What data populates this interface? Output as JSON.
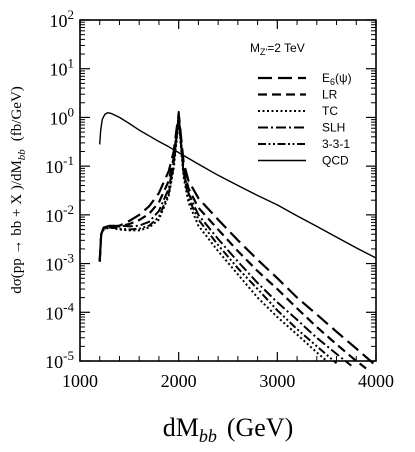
{
  "chart_data": {
    "type": "line",
    "xlabel": "dM",
    "xlabel_sub": "bb",
    "xlabel_unit": "(GeV)",
    "ylabel_parts": {
      "prefix": "dσ(pp → bb + X  )/dM",
      "sub": "bb",
      "unit": "(fb/GeV)"
    },
    "xlim": [
      1000,
      4000
    ],
    "ylim": [
      1e-05,
      100
    ],
    "yscale": "log",
    "grid": false,
    "legend_position": "top-right",
    "legend_title": "M",
    "legend_title_sub": "Z'",
    "legend_title_rest": "=2 TeV",
    "x_ticks": [
      {
        "value": 1000,
        "label": "1000"
      },
      {
        "value": 2000,
        "label": "2000"
      },
      {
        "value": 3000,
        "label": "3000"
      },
      {
        "value": 4000,
        "label": "4000"
      }
    ],
    "y_ticks": [
      {
        "value": 100,
        "base": "10",
        "exp": "2"
      },
      {
        "value": 10,
        "base": "10",
        "exp": "1"
      },
      {
        "value": 1,
        "base": "10",
        "exp": "0"
      },
      {
        "value": 0.1,
        "base": "10",
        "exp": "-1"
      },
      {
        "value": 0.01,
        "base": "10",
        "exp": "-2"
      },
      {
        "value": 0.001,
        "base": "10",
        "exp": "-3"
      },
      {
        "value": 0.0001,
        "base": "10",
        "exp": "-4"
      },
      {
        "value": 1e-05,
        "base": "10",
        "exp": "-5"
      }
    ],
    "series": [
      {
        "name": "E6(ψ)",
        "label_main": "E",
        "label_sub": "6",
        "label_rest": "(ψ)",
        "dash": "14,6",
        "width": 2.2,
        "points": [
          [
            1200,
            0.0011
          ],
          [
            1215,
            0.004
          ],
          [
            1240,
            0.0055
          ],
          [
            1300,
            0.0058
          ],
          [
            1400,
            0.006
          ],
          [
            1500,
            0.0075
          ],
          [
            1600,
            0.01
          ],
          [
            1700,
            0.015
          ],
          [
            1800,
            0.028
          ],
          [
            1900,
            0.08
          ],
          [
            1950,
            0.2
          ],
          [
            1980,
            0.6
          ],
          [
            2000,
            1.2
          ],
          [
            2020,
            0.5
          ],
          [
            2050,
            0.12
          ],
          [
            2100,
            0.05
          ],
          [
            2200,
            0.022
          ],
          [
            2400,
            0.008
          ],
          [
            2600,
            0.003
          ],
          [
            2800,
            0.0012
          ],
          [
            3000,
            0.0005
          ],
          [
            3200,
            0.0002
          ],
          [
            3400,
            9e-05
          ],
          [
            3600,
            4e-05
          ],
          [
            3800,
            1.8e-05
          ],
          [
            4000,
            8e-06
          ]
        ]
      },
      {
        "name": "LR",
        "label_main": "LR",
        "label_sub": "",
        "label_rest": "",
        "dash": "9,5",
        "width": 2.2,
        "points": [
          [
            1200,
            0.0011
          ],
          [
            1215,
            0.004
          ],
          [
            1240,
            0.0055
          ],
          [
            1300,
            0.0058
          ],
          [
            1400,
            0.0058
          ],
          [
            1500,
            0.0065
          ],
          [
            1600,
            0.0078
          ],
          [
            1700,
            0.0105
          ],
          [
            1800,
            0.018
          ],
          [
            1900,
            0.05
          ],
          [
            1950,
            0.15
          ],
          [
            1980,
            0.5
          ],
          [
            2000,
            1.0
          ],
          [
            2020,
            0.35
          ],
          [
            2050,
            0.09
          ],
          [
            2100,
            0.035
          ],
          [
            2200,
            0.014
          ],
          [
            2400,
            0.005
          ],
          [
            2600,
            0.0018
          ],
          [
            2800,
            0.0007
          ],
          [
            3000,
            0.0003
          ],
          [
            3200,
            0.00012
          ],
          [
            3400,
            5e-05
          ],
          [
            3600,
            2.2e-05
          ],
          [
            3800,
            1e-05
          ],
          [
            3900,
            7e-06
          ]
        ]
      },
      {
        "name": "TC",
        "label_main": "TC",
        "label_sub": "",
        "label_rest": "",
        "dash": "2,2.5",
        "width": 2.0,
        "points": [
          [
            1200,
            0.0011
          ],
          [
            1215,
            0.004
          ],
          [
            1240,
            0.005
          ],
          [
            1300,
            0.0055
          ],
          [
            1400,
            0.005
          ],
          [
            1500,
            0.0048
          ],
          [
            1600,
            0.0048
          ],
          [
            1700,
            0.0055
          ],
          [
            1800,
            0.008
          ],
          [
            1900,
            0.025
          ],
          [
            1950,
            0.09
          ],
          [
            1980,
            0.35
          ],
          [
            2000,
            0.9
          ],
          [
            2020,
            0.3
          ],
          [
            2050,
            0.06
          ],
          [
            2100,
            0.018
          ],
          [
            2200,
            0.006
          ],
          [
            2400,
            0.0018
          ],
          [
            2600,
            0.0006
          ],
          [
            2800,
            0.0002
          ],
          [
            3000,
            8e-05
          ],
          [
            3200,
            3.5e-05
          ],
          [
            3400,
            1.5e-05
          ],
          [
            3500,
            1e-05
          ]
        ]
      },
      {
        "name": "SLH",
        "label_main": "SLH",
        "label_sub": "",
        "label_rest": "",
        "dash": "10,3,2,3",
        "width": 2.0,
        "points": [
          [
            1200,
            0.0011
          ],
          [
            1215,
            0.004
          ],
          [
            1240,
            0.0055
          ],
          [
            1300,
            0.006
          ],
          [
            1400,
            0.006
          ],
          [
            1500,
            0.0058
          ],
          [
            1600,
            0.006
          ],
          [
            1700,
            0.0072
          ],
          [
            1800,
            0.012
          ],
          [
            1900,
            0.035
          ],
          [
            1950,
            0.12
          ],
          [
            1980,
            0.45
          ],
          [
            2000,
            1.1
          ],
          [
            2020,
            0.38
          ],
          [
            2050,
            0.08
          ],
          [
            2100,
            0.028
          ],
          [
            2200,
            0.01
          ],
          [
            2400,
            0.0032
          ],
          [
            2600,
            0.0011
          ],
          [
            2800,
            0.0004
          ],
          [
            3000,
            0.00016
          ],
          [
            3200,
            7e-05
          ],
          [
            3400,
            3e-05
          ],
          [
            3600,
            1.4e-05
          ],
          [
            3750,
            8e-06
          ]
        ]
      },
      {
        "name": "3-3-1",
        "label_main": "3-3-1",
        "label_sub": "",
        "label_rest": "",
        "dash": "8,2.5,2,2.5,2,2.5",
        "width": 2.0,
        "points": [
          [
            1200,
            0.0011
          ],
          [
            1215,
            0.004
          ],
          [
            1240,
            0.0052
          ],
          [
            1300,
            0.0055
          ],
          [
            1400,
            0.0052
          ],
          [
            1500,
            0.005
          ],
          [
            1600,
            0.0052
          ],
          [
            1700,
            0.006
          ],
          [
            1800,
            0.009
          ],
          [
            1900,
            0.028
          ],
          [
            1950,
            0.1
          ],
          [
            1980,
            0.4
          ],
          [
            2000,
            1.3
          ],
          [
            2020,
            0.4
          ],
          [
            2050,
            0.07
          ],
          [
            2100,
            0.022
          ],
          [
            2200,
            0.008
          ],
          [
            2400,
            0.0024
          ],
          [
            2600,
            0.0008
          ],
          [
            2800,
            0.0003
          ],
          [
            3000,
            0.00011
          ],
          [
            3200,
            4.5e-05
          ],
          [
            3400,
            2e-05
          ],
          [
            3600,
            9e-06
          ]
        ]
      },
      {
        "name": "QCD",
        "label_main": "QCD",
        "label_sub": "",
        "label_rest": "",
        "dash": "",
        "width": 1.4,
        "points": [
          [
            1200,
            0.28
          ],
          [
            1210,
            0.55
          ],
          [
            1225,
            0.9
          ],
          [
            1250,
            1.15
          ],
          [
            1280,
            1.25
          ],
          [
            1320,
            1.2
          ],
          [
            1400,
            1.0
          ],
          [
            1500,
            0.75
          ],
          [
            1600,
            0.55
          ],
          [
            1700,
            0.42
          ],
          [
            1800,
            0.32
          ],
          [
            1900,
            0.25
          ],
          [
            2000,
            0.19
          ],
          [
            2200,
            0.11
          ],
          [
            2400,
            0.065
          ],
          [
            2600,
            0.04
          ],
          [
            2800,
            0.025
          ],
          [
            3000,
            0.016
          ],
          [
            3200,
            0.0095
          ],
          [
            3400,
            0.0058
          ],
          [
            3600,
            0.0035
          ],
          [
            3800,
            0.0021
          ],
          [
            4000,
            0.0013
          ]
        ]
      }
    ]
  }
}
